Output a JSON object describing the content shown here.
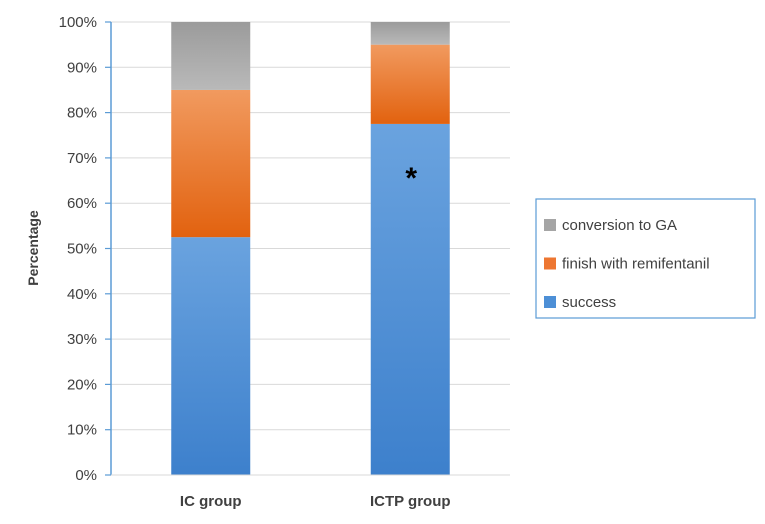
{
  "chart_data": {
    "type": "bar",
    "stacked": true,
    "percent_axis": true,
    "categories": [
      "IC group",
      "ICTP group"
    ],
    "series": [
      {
        "name": "success",
        "values": [
          52.5,
          77.5
        ],
        "color": "#4d8fd6"
      },
      {
        "name": "finish with remifentanil",
        "values": [
          32.5,
          17.5
        ],
        "color": "#ed7631"
      },
      {
        "name": "conversion to GA",
        "values": [
          15,
          5
        ],
        "color": "#a5a5a5"
      }
    ],
    "legend_order": [
      "conversion to GA",
      "finish with remifentanil",
      "success"
    ],
    "ylabel": "Percentage",
    "xlabel": "",
    "ylim": [
      0,
      100
    ],
    "y_ticks": [
      "0%",
      "10%",
      "20%",
      "30%",
      "40%",
      "50%",
      "60%",
      "70%",
      "80%",
      "90%",
      "100%"
    ],
    "grid": true,
    "legend_position": "right",
    "annotations": [
      {
        "category": "ICTP group",
        "text": "*",
        "y": 66
      }
    ]
  }
}
